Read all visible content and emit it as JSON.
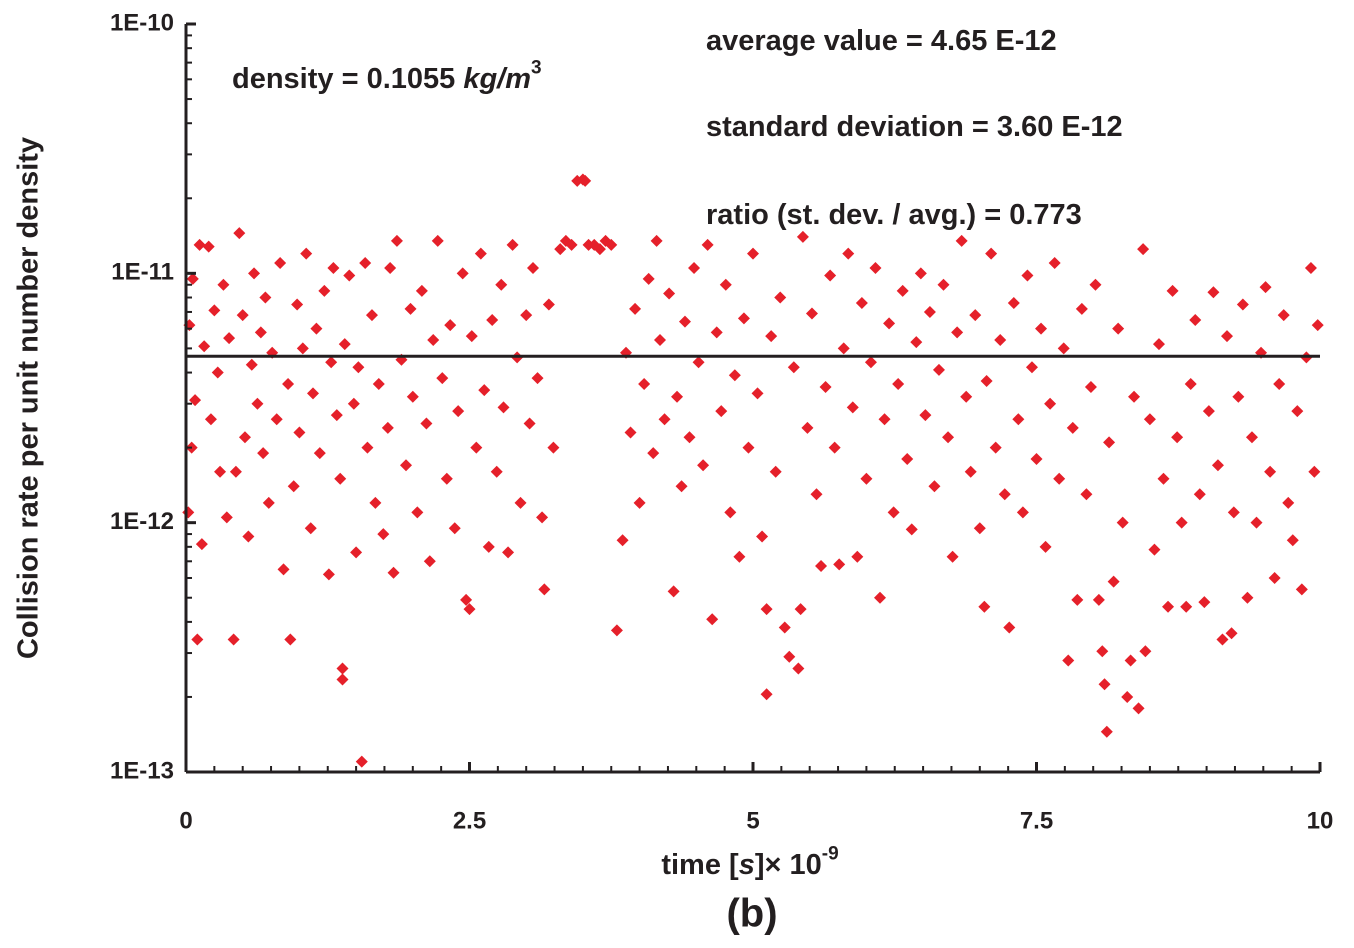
{
  "chart_data": {
    "type": "scatter",
    "caption": "(b)",
    "x_label": [
      {
        "text": "time [",
        "style": "normal"
      },
      {
        "text": "s",
        "style": "italic"
      },
      {
        "text": "]× 10",
        "style": "normal"
      },
      {
        "text": "-9",
        "style": "sup"
      }
    ],
    "y_label": "Collision rate per unit number density",
    "annotations": [
      [
        {
          "text": "density = 0.1055 ",
          "style": "normal"
        },
        {
          "text": "kg/m",
          "style": "italic"
        },
        {
          "text": "3",
          "style": "sup"
        }
      ],
      [
        {
          "text": "average value = 4.65 E-12",
          "style": "normal"
        }
      ],
      [
        {
          "text": "standard deviation = 3.60 E-12",
          "style": "normal"
        }
      ],
      [
        {
          "text": "ratio (st. dev. / avg.) = 0.773",
          "style": "normal"
        }
      ]
    ],
    "xlim": [
      0,
      10
    ],
    "xticks": [
      0,
      2.5,
      5,
      7.5,
      10
    ],
    "xminorticks": [
      0.25,
      0.5,
      0.75,
      1,
      1.25,
      1.5,
      1.75,
      2,
      2.25,
      2.75,
      3,
      3.25,
      3.5,
      3.75,
      4,
      4.25,
      4.5,
      4.75,
      5.25,
      5.5,
      5.75,
      6,
      6.25,
      6.5,
      6.75,
      7,
      7.25,
      7.75,
      8,
      8.25,
      8.5,
      8.75,
      9,
      9.25,
      9.5,
      9.75
    ],
    "ylim": [
      1e-13,
      1e-10
    ],
    "y_log": true,
    "yticks": [
      {
        "value": 1e-13,
        "label": "1E-13"
      },
      {
        "value": 1e-12,
        "label": "1E-12"
      },
      {
        "value": 1e-11,
        "label": "1E-11"
      },
      {
        "value": 1e-10,
        "label": "1E-10"
      }
    ],
    "yminorticks": [
      2e-13,
      3e-13,
      4e-13,
      5e-13,
      6e-13,
      7e-13,
      8e-13,
      9e-13,
      2e-12,
      3e-12,
      4e-12,
      5e-12,
      6e-12,
      7e-12,
      8e-12,
      9e-12,
      2e-11,
      3e-11,
      4e-11,
      5e-11,
      6e-11,
      7e-11,
      8e-11,
      9e-11
    ],
    "reference_line": {
      "value": 4.65e-12,
      "color": "#231f20"
    },
    "grid": false,
    "series": [
      {
        "color": "#e5202a",
        "marker": "diamond",
        "x": [
          0.02,
          0.03,
          0.05,
          0.06,
          0.08,
          0.1,
          0.12,
          0.14,
          0.16,
          0.2,
          0.22,
          0.25,
          0.28,
          0.3,
          0.33,
          0.36,
          0.38,
          0.42,
          0.44,
          0.47,
          0.5,
          0.52,
          0.55,
          0.58,
          0.6,
          0.63,
          0.66,
          0.68,
          0.7,
          0.73,
          0.76,
          0.8,
          0.83,
          0.86,
          0.9,
          0.92,
          0.95,
          0.98,
          1.0,
          1.03,
          1.06,
          1.1,
          1.12,
          1.15,
          1.18,
          1.22,
          1.26,
          1.28,
          1.3,
          1.33,
          1.36,
          1.38,
          1.38,
          1.4,
          1.44,
          1.48,
          1.5,
          1.52,
          1.55,
          1.58,
          1.6,
          1.64,
          1.67,
          1.7,
          1.74,
          1.78,
          1.8,
          1.83,
          1.86,
          1.9,
          1.94,
          1.98,
          2.0,
          2.04,
          2.08,
          2.12,
          2.15,
          2.18,
          2.22,
          2.26,
          2.3,
          2.33,
          2.37,
          2.4,
          2.44,
          2.47,
          2.5,
          2.52,
          2.56,
          2.6,
          2.63,
          2.67,
          2.7,
          2.74,
          2.78,
          2.8,
          2.84,
          2.88,
          2.92,
          2.95,
          3.0,
          3.03,
          3.06,
          3.1,
          3.14,
          3.16,
          3.2,
          3.24,
          3.3,
          3.35,
          3.4,
          3.45,
          3.5,
          3.52,
          3.55,
          3.6,
          3.65,
          3.7,
          3.75,
          3.8,
          3.85,
          3.88,
          3.92,
          3.96,
          4.0,
          4.04,
          4.08,
          4.12,
          4.15,
          4.18,
          4.22,
          4.26,
          4.3,
          4.33,
          4.37,
          4.4,
          4.44,
          4.48,
          4.52,
          4.56,
          4.6,
          4.64,
          4.68,
          4.72,
          4.76,
          4.8,
          4.84,
          4.88,
          4.92,
          4.96,
          5.0,
          5.04,
          5.08,
          5.12,
          5.12,
          5.16,
          5.2,
          5.24,
          5.28,
          5.32,
          5.36,
          5.4,
          5.42,
          5.44,
          5.48,
          5.52,
          5.56,
          5.6,
          5.64,
          5.68,
          5.72,
          5.76,
          5.8,
          5.84,
          5.88,
          5.92,
          5.96,
          6.0,
          6.04,
          6.08,
          6.12,
          6.16,
          6.2,
          6.24,
          6.28,
          6.32,
          6.36,
          6.4,
          6.44,
          6.48,
          6.52,
          6.56,
          6.6,
          6.64,
          6.68,
          6.72,
          6.76,
          6.8,
          6.84,
          6.88,
          6.92,
          6.96,
          7.0,
          7.04,
          7.06,
          7.1,
          7.14,
          7.18,
          7.22,
          7.26,
          7.3,
          7.34,
          7.38,
          7.42,
          7.46,
          7.5,
          7.54,
          7.58,
          7.62,
          7.66,
          7.7,
          7.74,
          7.78,
          7.82,
          7.86,
          7.9,
          7.94,
          7.98,
          8.02,
          8.05,
          8.08,
          8.1,
          8.12,
          8.14,
          8.18,
          8.22,
          8.26,
          8.3,
          8.33,
          8.36,
          8.4,
          8.44,
          8.46,
          8.5,
          8.54,
          8.58,
          8.62,
          8.66,
          8.7,
          8.74,
          8.78,
          8.82,
          8.86,
          8.9,
          8.94,
          8.98,
          9.02,
          9.06,
          9.1,
          9.14,
          9.18,
          9.22,
          9.24,
          9.28,
          9.32,
          9.36,
          9.4,
          9.44,
          9.48,
          9.52,
          9.56,
          9.6,
          9.64,
          9.68,
          9.72,
          9.76,
          9.8,
          9.84,
          9.88,
          9.92,
          9.95,
          9.98
        ],
        "values": [
          1.1e-12,
          6.2e-12,
          2e-12,
          9.5e-12,
          3.1e-12,
          3.4e-13,
          1.3e-11,
          8.2e-13,
          5.1e-12,
          1.28e-11,
          2.6e-12,
          7.1e-12,
          4e-12,
          1.6e-12,
          9e-12,
          1.05e-12,
          5.5e-12,
          3.4e-13,
          1.6e-12,
          1.45e-11,
          6.8e-12,
          2.2e-12,
          8.8e-13,
          4.3e-12,
          1e-11,
          3e-12,
          5.8e-12,
          1.9e-12,
          8e-12,
          1.2e-12,
          4.8e-12,
          2.6e-12,
          1.1e-11,
          6.5e-13,
          3.6e-12,
          3.4e-13,
          1.4e-12,
          7.5e-12,
          2.3e-12,
          5e-12,
          1.2e-11,
          9.5e-13,
          3.3e-12,
          6e-12,
          1.9e-12,
          8.5e-12,
          6.2e-13,
          4.4e-12,
          1.05e-11,
          2.7e-12,
          1.5e-12,
          2.6e-13,
          2.35e-13,
          5.2e-12,
          9.8e-12,
          3e-12,
          7.6e-13,
          4.2e-12,
          1.1e-13,
          1.1e-11,
          2e-12,
          6.8e-12,
          1.2e-12,
          3.6e-12,
          9e-13,
          2.4e-12,
          1.05e-11,
          6.3e-13,
          1.35e-11,
          4.5e-12,
          1.7e-12,
          7.2e-12,
          3.2e-12,
          1.1e-12,
          8.5e-12,
          2.5e-12,
          7e-13,
          5.4e-12,
          1.35e-11,
          3.8e-12,
          1.5e-12,
          6.2e-12,
          9.5e-13,
          2.8e-12,
          1e-11,
          4.9e-13,
          4.5e-13,
          5.6e-12,
          2e-12,
          1.2e-11,
          3.4e-12,
          8e-13,
          6.5e-12,
          1.6e-12,
          9e-12,
          2.9e-12,
          7.6e-13,
          1.3e-11,
          4.6e-12,
          1.2e-12,
          6.8e-12,
          2.5e-12,
          1.05e-11,
          3.8e-12,
          1.05e-12,
          5.4e-13,
          7.5e-12,
          2e-12,
          1.25e-11,
          1.35e-11,
          1.3e-11,
          2.35e-11,
          2.38e-11,
          2.35e-11,
          1.3e-11,
          1.3e-11,
          1.25e-11,
          1.35e-11,
          1.3e-11,
          3.7e-13,
          8.5e-13,
          4.8e-12,
          2.3e-12,
          7.2e-12,
          1.2e-12,
          3.6e-12,
          9.5e-12,
          1.9e-12,
          1.35e-11,
          5.4e-12,
          2.6e-12,
          8.3e-12,
          5.3e-13,
          3.2e-12,
          1.4e-12,
          6.4e-12,
          2.2e-12,
          1.05e-11,
          4.4e-12,
          1.7e-12,
          1.3e-11,
          4.1e-13,
          5.8e-12,
          2.8e-12,
          9e-12,
          1.1e-12,
          3.9e-12,
          7.3e-13,
          6.6e-12,
          2e-12,
          1.2e-11,
          3.3e-12,
          8.8e-13,
          2.05e-13,
          4.5e-13,
          5.6e-12,
          1.6e-12,
          8e-12,
          3.8e-13,
          2.9e-13,
          4.2e-12,
          2.6e-13,
          4.5e-13,
          1.4e-11,
          2.4e-12,
          6.9e-12,
          1.3e-12,
          6.7e-13,
          3.5e-12,
          9.8e-12,
          2e-12,
          6.8e-13,
          5e-12,
          1.2e-11,
          2.9e-12,
          7.3e-13,
          7.6e-12,
          1.5e-12,
          4.4e-12,
          1.05e-11,
          5e-13,
          2.6e-12,
          6.3e-12,
          1.1e-12,
          3.6e-12,
          8.5e-12,
          1.8e-12,
          9.4e-13,
          5.3e-12,
          1e-11,
          2.7e-12,
          7e-12,
          1.4e-12,
          4.1e-12,
          9e-12,
          2.2e-12,
          7.3e-13,
          5.8e-12,
          1.35e-11,
          3.2e-12,
          1.6e-12,
          6.8e-12,
          9.5e-13,
          4.6e-13,
          3.7e-12,
          1.2e-11,
          2e-12,
          5.4e-12,
          1.3e-12,
          3.8e-13,
          7.6e-12,
          2.6e-12,
          1.1e-12,
          9.8e-12,
          4.2e-12,
          1.8e-12,
          6e-12,
          8e-13,
          3e-12,
          1.1e-11,
          1.5e-12,
          5e-12,
          2.8e-13,
          2.4e-12,
          4.9e-13,
          7.2e-12,
          1.3e-12,
          3.5e-12,
          9e-12,
          4.9e-13,
          3.05e-13,
          2.25e-13,
          1.45e-13,
          2.1e-12,
          5.8e-13,
          6e-12,
          1e-12,
          2e-13,
          2.8e-13,
          3.2e-12,
          1.8e-13,
          1.25e-11,
          3.05e-13,
          2.6e-12,
          7.8e-13,
          5.2e-12,
          1.5e-12,
          4.6e-13,
          8.5e-12,
          2.2e-12,
          1e-12,
          4.6e-13,
          3.6e-12,
          6.5e-12,
          1.3e-12,
          4.8e-13,
          2.8e-12,
          8.4e-12,
          1.7e-12,
          3.4e-13,
          5.6e-12,
          3.6e-13,
          1.1e-12,
          3.2e-12,
          7.5e-12,
          5e-13,
          2.2e-12,
          1e-12,
          4.8e-12,
          8.8e-12,
          1.6e-12,
          6e-13,
          3.6e-12,
          6.8e-12,
          1.2e-12,
          8.5e-13,
          2.8e-12,
          5.4e-13,
          4.6e-12,
          1.05e-11,
          1.6e-12,
          6.2e-12
        ]
      }
    ]
  }
}
